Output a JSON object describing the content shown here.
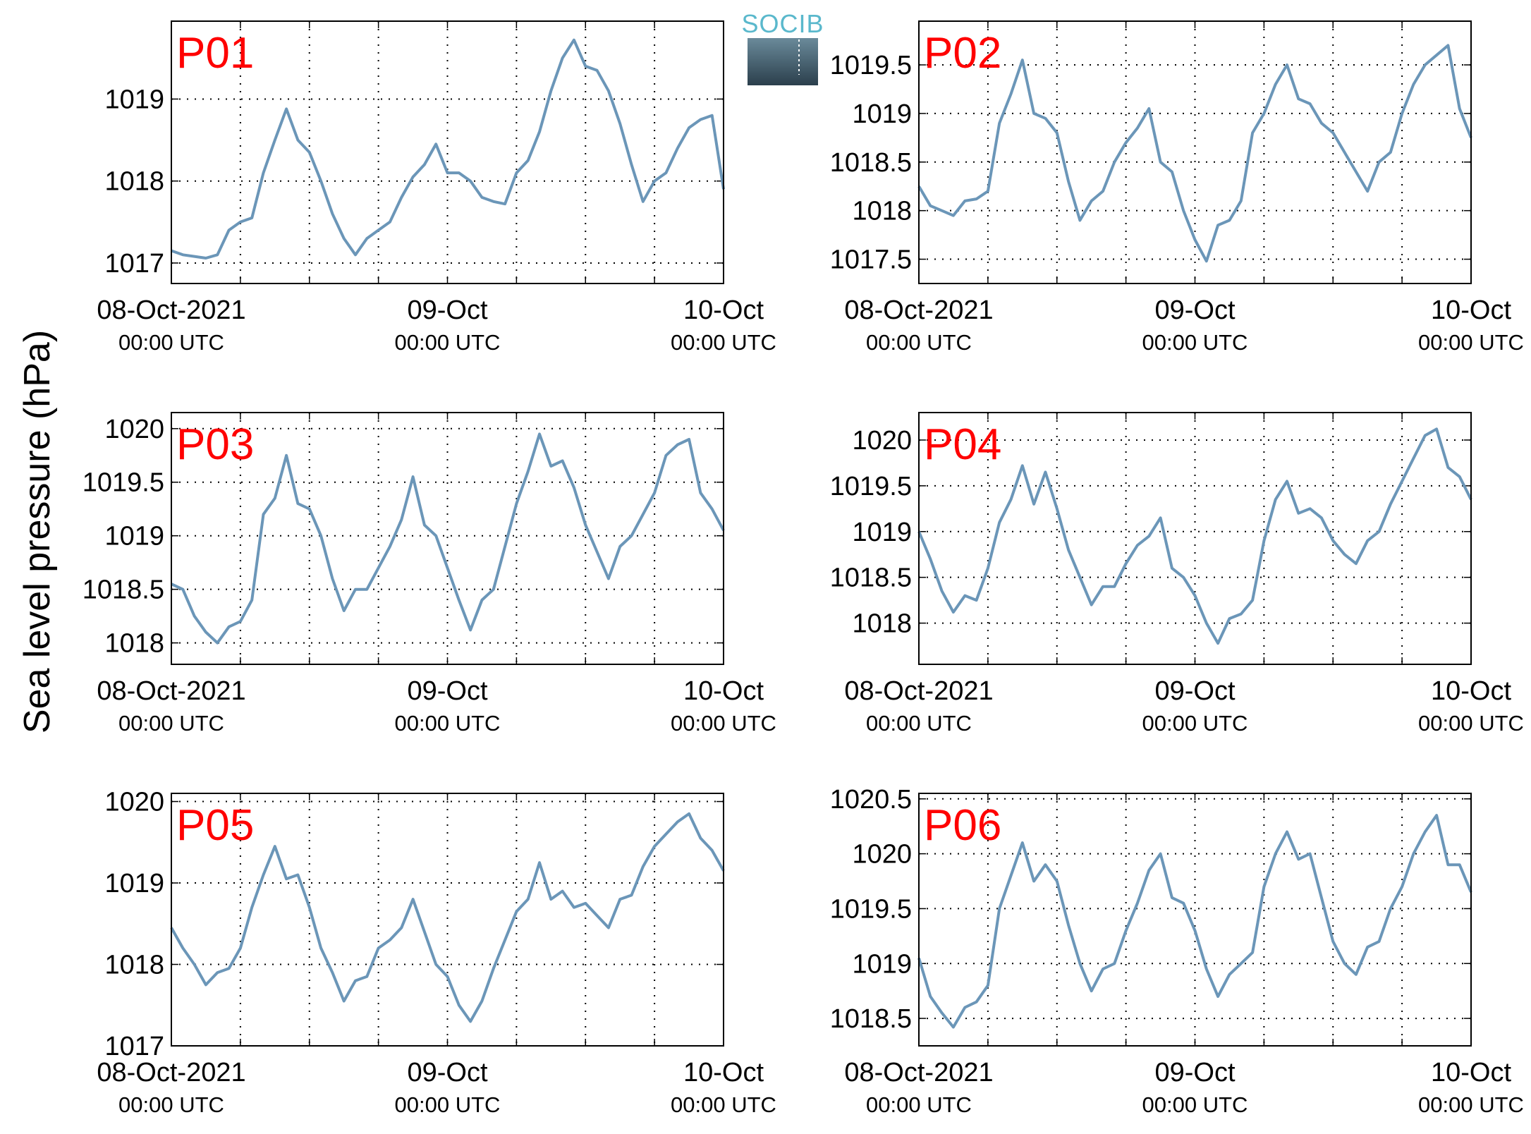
{
  "logo": {
    "text": "SOCIB"
  },
  "ylabel": "Sea level pressure (hPa)",
  "colors": {
    "line": "#6b96b8",
    "panel_label": "#ff0000",
    "axes": "#000000",
    "grid": "#000000"
  },
  "x_ticks": [
    {
      "main": "08-Oct-2021",
      "sub": "00:00 UTC"
    },
    {
      "main": "09-Oct",
      "sub": "00:00 UTC"
    },
    {
      "main": "10-Oct",
      "sub": "00:00 UTC"
    }
  ],
  "chart_data": [
    {
      "type": "line",
      "panel_label": "P01",
      "xlim": [
        0,
        48
      ],
      "ylim": [
        1016.75,
        1019.95
      ],
      "yticks": [
        1017,
        1018,
        1019
      ],
      "x": [
        0,
        1,
        2,
        3,
        4,
        5,
        6,
        7,
        8,
        9,
        10,
        11,
        12,
        13,
        14,
        15,
        16,
        17,
        18,
        19,
        20,
        21,
        22,
        23,
        24,
        25,
        26,
        27,
        28,
        29,
        30,
        31,
        32,
        33,
        34,
        35,
        36,
        37,
        38,
        39,
        40,
        41,
        42,
        43,
        44,
        45,
        46,
        47,
        48
      ],
      "values": [
        1017.15,
        1017.1,
        1017.08,
        1017.06,
        1017.1,
        1017.4,
        1017.5,
        1017.55,
        1018.1,
        1018.5,
        1018.88,
        1018.5,
        1018.35,
        1018.0,
        1017.6,
        1017.3,
        1017.1,
        1017.3,
        1017.4,
        1017.5,
        1017.8,
        1018.05,
        1018.2,
        1018.45,
        1018.1,
        1018.1,
        1018.0,
        1017.8,
        1017.75,
        1017.72,
        1018.1,
        1018.25,
        1018.6,
        1019.1,
        1019.5,
        1019.72,
        1019.4,
        1019.35,
        1019.1,
        1018.7,
        1018.2,
        1017.75,
        1018.0,
        1018.1,
        1018.4,
        1018.65,
        1018.75,
        1018.8,
        1017.9
      ]
    },
    {
      "type": "line",
      "panel_label": "P02",
      "xlim": [
        0,
        48
      ],
      "ylim": [
        1017.25,
        1019.95
      ],
      "yticks": [
        1017.5,
        1018,
        1018.5,
        1019,
        1019.5
      ],
      "x": [
        0,
        1,
        2,
        3,
        4,
        5,
        6,
        7,
        8,
        9,
        10,
        11,
        12,
        13,
        14,
        15,
        16,
        17,
        18,
        19,
        20,
        21,
        22,
        23,
        24,
        25,
        26,
        27,
        28,
        29,
        30,
        31,
        32,
        33,
        34,
        35,
        36,
        37,
        38,
        39,
        40,
        41,
        42,
        43,
        44,
        45,
        46,
        47,
        48
      ],
      "values": [
        1018.25,
        1018.05,
        1018.0,
        1017.95,
        1018.1,
        1018.12,
        1018.2,
        1018.9,
        1019.2,
        1019.55,
        1019.0,
        1018.95,
        1018.8,
        1018.3,
        1017.9,
        1018.1,
        1018.2,
        1018.5,
        1018.7,
        1018.85,
        1019.05,
        1018.5,
        1018.4,
        1018.0,
        1017.7,
        1017.48,
        1017.85,
        1017.9,
        1018.1,
        1018.8,
        1019.0,
        1019.3,
        1019.5,
        1019.15,
        1019.1,
        1018.9,
        1018.8,
        1018.6,
        1018.4,
        1018.2,
        1018.5,
        1018.6,
        1019.0,
        1019.3,
        1019.5,
        1019.6,
        1019.7,
        1019.05,
        1018.75
      ]
    },
    {
      "type": "line",
      "panel_label": "P03",
      "xlim": [
        0,
        48
      ],
      "ylim": [
        1017.8,
        1020.15
      ],
      "yticks": [
        1018,
        1018.5,
        1019,
        1019.5,
        1020
      ],
      "x": [
        0,
        1,
        2,
        3,
        4,
        5,
        6,
        7,
        8,
        9,
        10,
        11,
        12,
        13,
        14,
        15,
        16,
        17,
        18,
        19,
        20,
        21,
        22,
        23,
        24,
        25,
        26,
        27,
        28,
        29,
        30,
        31,
        32,
        33,
        34,
        35,
        36,
        37,
        38,
        39,
        40,
        41,
        42,
        43,
        44,
        45,
        46,
        47,
        48
      ],
      "values": [
        1018.55,
        1018.5,
        1018.25,
        1018.1,
        1018.0,
        1018.15,
        1018.2,
        1018.4,
        1019.2,
        1019.35,
        1019.75,
        1019.3,
        1019.25,
        1019.0,
        1018.6,
        1018.3,
        1018.5,
        1018.5,
        1018.7,
        1018.9,
        1019.15,
        1019.55,
        1019.1,
        1019.0,
        1018.7,
        1018.4,
        1018.12,
        1018.4,
        1018.5,
        1018.9,
        1019.3,
        1019.6,
        1019.95,
        1019.65,
        1019.7,
        1019.45,
        1019.1,
        1018.85,
        1018.6,
        1018.9,
        1019.0,
        1019.2,
        1019.4,
        1019.75,
        1019.85,
        1019.9,
        1019.4,
        1019.25,
        1019.05
      ]
    },
    {
      "type": "line",
      "panel_label": "P04",
      "xlim": [
        0,
        48
      ],
      "ylim": [
        1017.55,
        1020.3
      ],
      "yticks": [
        1018,
        1018.5,
        1019,
        1019.5,
        1020
      ],
      "x": [
        0,
        1,
        2,
        3,
        4,
        5,
        6,
        7,
        8,
        9,
        10,
        11,
        12,
        13,
        14,
        15,
        16,
        17,
        18,
        19,
        20,
        21,
        22,
        23,
        24,
        25,
        26,
        27,
        28,
        29,
        30,
        31,
        32,
        33,
        34,
        35,
        36,
        37,
        38,
        39,
        40,
        41,
        42,
        43,
        44,
        45,
        46,
        47,
        48
      ],
      "values": [
        1019.0,
        1018.7,
        1018.35,
        1018.12,
        1018.3,
        1018.25,
        1018.6,
        1019.1,
        1019.35,
        1019.72,
        1019.3,
        1019.65,
        1019.25,
        1018.8,
        1018.5,
        1018.2,
        1018.4,
        1018.4,
        1018.65,
        1018.85,
        1018.95,
        1019.15,
        1018.6,
        1018.5,
        1018.3,
        1018.0,
        1017.78,
        1018.05,
        1018.1,
        1018.25,
        1018.9,
        1019.35,
        1019.55,
        1019.2,
        1019.25,
        1019.15,
        1018.9,
        1018.75,
        1018.65,
        1018.9,
        1019.0,
        1019.3,
        1019.55,
        1019.8,
        1020.05,
        1020.12,
        1019.7,
        1019.6,
        1019.35
      ]
    },
    {
      "type": "line",
      "panel_label": "P05",
      "xlim": [
        0,
        48
      ],
      "ylim": [
        1017.0,
        1020.1
      ],
      "yticks": [
        1017,
        1018,
        1019,
        1020
      ],
      "x": [
        0,
        1,
        2,
        3,
        4,
        5,
        6,
        7,
        8,
        9,
        10,
        11,
        12,
        13,
        14,
        15,
        16,
        17,
        18,
        19,
        20,
        21,
        22,
        23,
        24,
        25,
        26,
        27,
        28,
        29,
        30,
        31,
        32,
        33,
        34,
        35,
        36,
        37,
        38,
        39,
        40,
        41,
        42,
        43,
        44,
        45,
        46,
        47,
        48
      ],
      "values": [
        1018.45,
        1018.2,
        1018.0,
        1017.75,
        1017.9,
        1017.95,
        1018.2,
        1018.7,
        1019.1,
        1019.45,
        1019.05,
        1019.1,
        1018.7,
        1018.2,
        1017.9,
        1017.55,
        1017.8,
        1017.85,
        1018.2,
        1018.3,
        1018.45,
        1018.8,
        1018.4,
        1018.0,
        1017.85,
        1017.5,
        1017.3,
        1017.55,
        1017.95,
        1018.3,
        1018.65,
        1018.8,
        1019.25,
        1018.8,
        1018.9,
        1018.7,
        1018.75,
        1018.6,
        1018.45,
        1018.8,
        1018.85,
        1019.2,
        1019.45,
        1019.6,
        1019.75,
        1019.85,
        1019.55,
        1019.4,
        1019.15
      ]
    },
    {
      "type": "line",
      "panel_label": "P06",
      "xlim": [
        0,
        48
      ],
      "ylim": [
        1018.25,
        1020.55
      ],
      "yticks": [
        1018.5,
        1019,
        1019.5,
        1020,
        1020.5
      ],
      "x": [
        0,
        1,
        2,
        3,
        4,
        5,
        6,
        7,
        8,
        9,
        10,
        11,
        12,
        13,
        14,
        15,
        16,
        17,
        18,
        19,
        20,
        21,
        22,
        23,
        24,
        25,
        26,
        27,
        28,
        29,
        30,
        31,
        32,
        33,
        34,
        35,
        36,
        37,
        38,
        39,
        40,
        41,
        42,
        43,
        44,
        45,
        46,
        47,
        48
      ],
      "values": [
        1019.05,
        1018.7,
        1018.55,
        1018.42,
        1018.6,
        1018.65,
        1018.8,
        1019.5,
        1019.8,
        1020.1,
        1019.75,
        1019.9,
        1019.75,
        1019.35,
        1019.0,
        1018.75,
        1018.95,
        1019.0,
        1019.3,
        1019.55,
        1019.85,
        1020.0,
        1019.6,
        1019.55,
        1019.3,
        1018.95,
        1018.7,
        1018.9,
        1019.0,
        1019.1,
        1019.7,
        1020.0,
        1020.2,
        1019.95,
        1020.0,
        1019.6,
        1019.2,
        1019.0,
        1018.9,
        1019.15,
        1019.2,
        1019.5,
        1019.7,
        1020.0,
        1020.2,
        1020.35,
        1019.9,
        1019.9,
        1019.65
      ]
    }
  ]
}
